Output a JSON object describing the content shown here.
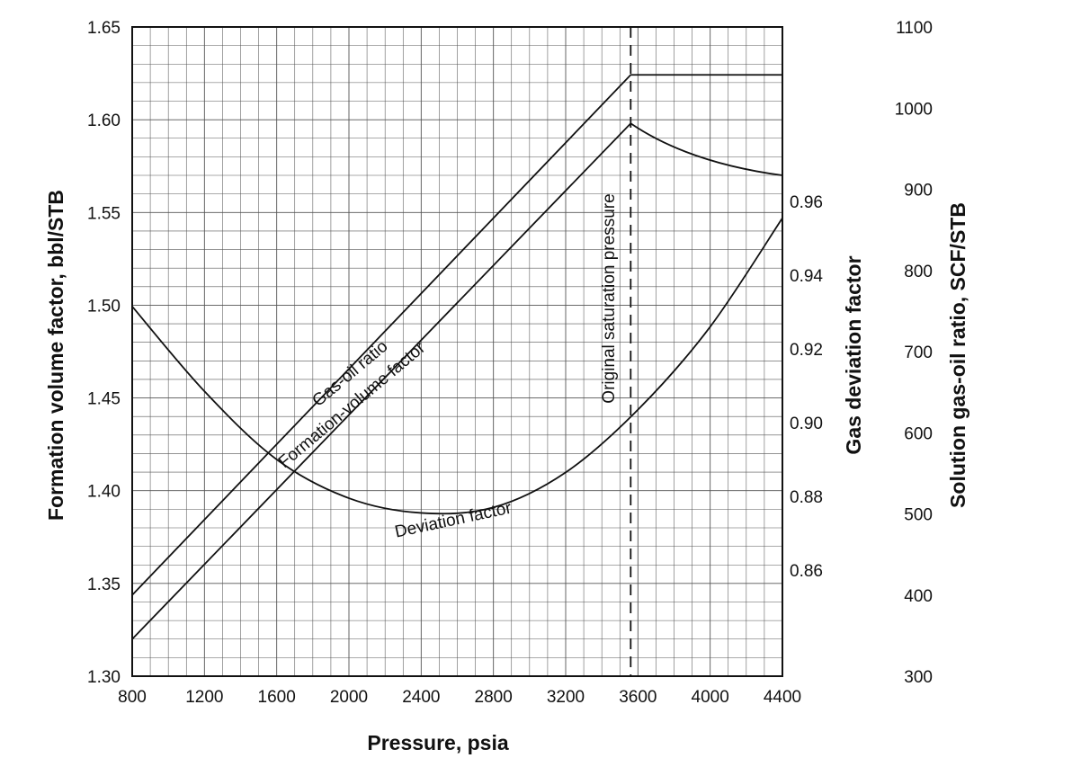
{
  "chart_data": {
    "type": "line",
    "x_axis": {
      "label": "Pressure, psia",
      "range": [
        800,
        4400
      ],
      "ticks": [
        "800",
        "1200",
        "1600",
        "2000",
        "2400",
        "2800",
        "3200",
        "3600",
        "4000",
        "4400"
      ],
      "tick_values": [
        800,
        1200,
        1600,
        2000,
        2400,
        2800,
        3200,
        3600,
        4000,
        4400
      ]
    },
    "y_left": {
      "label": "Formation volume factor, bbl/STB",
      "range": [
        1.3,
        1.65
      ],
      "ticks": [
        "1.30",
        "1.35",
        "1.40",
        "1.45",
        "1.50",
        "1.55",
        "1.60",
        "1.65"
      ],
      "tick_values": [
        1.3,
        1.35,
        1.4,
        1.45,
        1.5,
        1.55,
        1.6,
        1.65
      ]
    },
    "y_right_inner": {
      "label": "Gas deviation factor",
      "ticks": [
        "0.86",
        "0.88",
        "0.90",
        "0.92",
        "0.94",
        "0.96"
      ],
      "tick_values": [
        0.86,
        0.88,
        0.9,
        0.92,
        0.94,
        0.96
      ]
    },
    "y_right_outer": {
      "label": "Solution gas-oil ratio, SCF/STB",
      "range": [
        300,
        1100
      ],
      "ticks": [
        "300",
        "400",
        "500",
        "600",
        "700",
        "800",
        "900",
        "1000",
        "1100"
      ],
      "tick_values": [
        300,
        400,
        500,
        600,
        700,
        800,
        900,
        1000,
        1100
      ]
    },
    "grid": true,
    "series": [
      {
        "name": "Gas-oil ratio",
        "axis": "y_right_outer",
        "x": [
          800,
          3560,
          4400
        ],
        "y": [
          400,
          1041,
          1041
        ]
      },
      {
        "name": "Formation-volume factor",
        "axis": "y_left",
        "x": [
          800,
          3560,
          4400
        ],
        "y": [
          1.32,
          1.598,
          1.57
        ]
      },
      {
        "name": "Deviation factor",
        "axis": "y_right_inner",
        "x": [
          800,
          1200,
          1600,
          2000,
          2400,
          2800,
          3200,
          3600,
          4000,
          4400
        ],
        "y": [
          0.9315,
          0.9085,
          0.89,
          0.8795,
          0.8755,
          0.877,
          0.8865,
          0.9035,
          0.926,
          0.9555
        ]
      }
    ],
    "annotations": [
      {
        "text": "Original saturation pressure",
        "x": 3560
      }
    ]
  }
}
